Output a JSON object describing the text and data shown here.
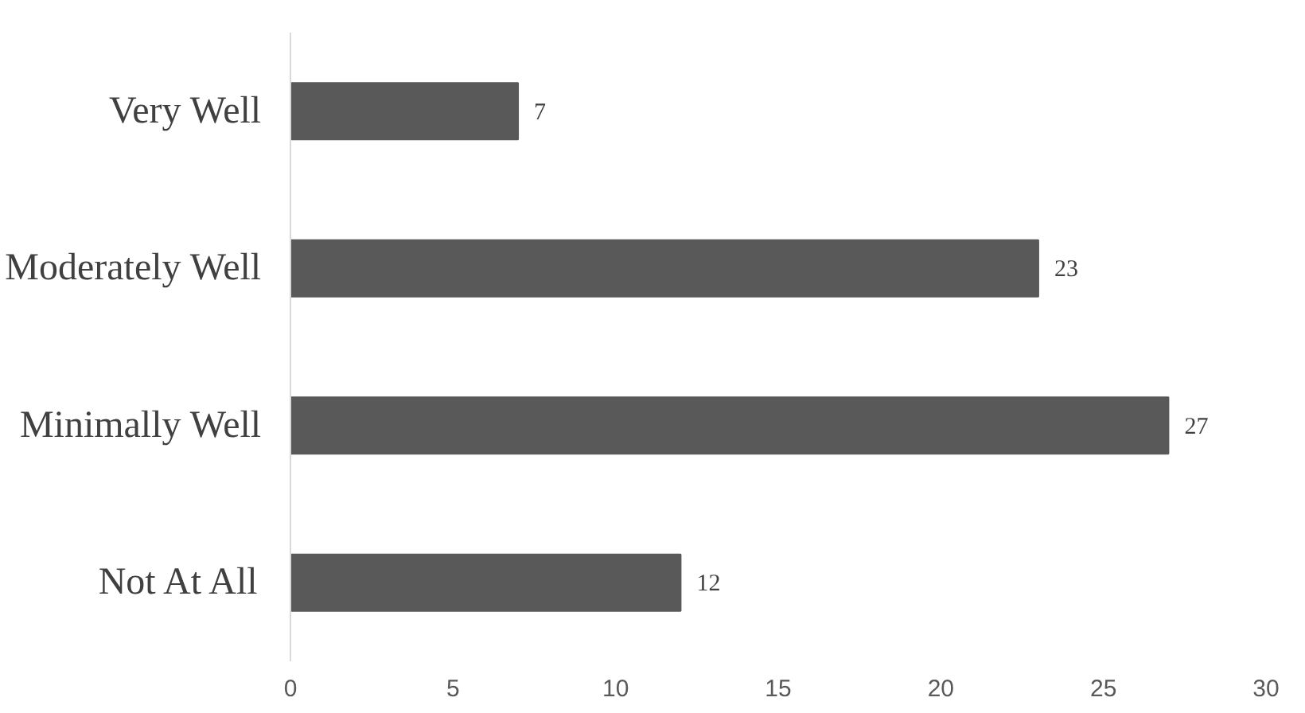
{
  "chart_data": {
    "type": "bar",
    "orientation": "horizontal",
    "categories": [
      "Very Well",
      "Moderately Well",
      "Minimally Well",
      "Not At All"
    ],
    "values": [
      7,
      23,
      27,
      12
    ],
    "color": "#595959",
    "xlim": [
      0,
      30
    ],
    "xticks": [
      0,
      5,
      10,
      15,
      20,
      25,
      30
    ],
    "grid": false,
    "data_labels": true
  }
}
